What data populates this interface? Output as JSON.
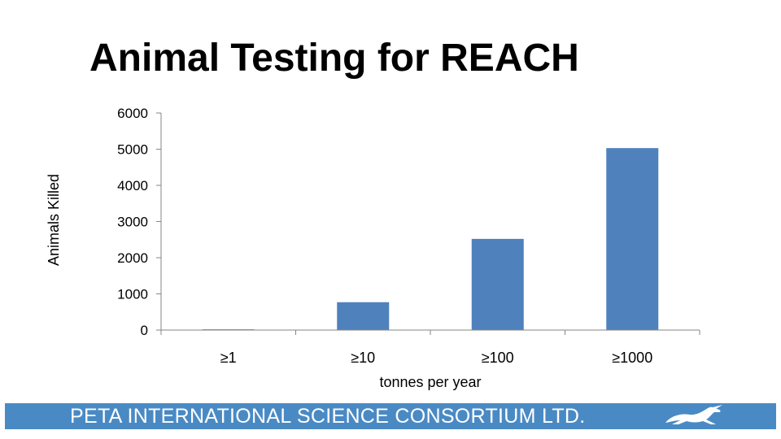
{
  "slide": {
    "title": "Animal Testing for REACH"
  },
  "footer": {
    "text": "PETA INTERNATIONAL SCIENCE CONSORTIUM LTD.",
    "logo_icon": "leaping-rabbit-icon",
    "bar_color": "#4a8ac4"
  },
  "chart_data": {
    "type": "bar",
    "categories": [
      "≥1",
      "≥10",
      "≥100",
      "≥1000"
    ],
    "values": [
      20,
      770,
      2520,
      5030
    ],
    "xlabel": "tonnes per year",
    "ylabel": "Animals Killed",
    "ylim": [
      0,
      6000
    ],
    "yticks": [
      0,
      1000,
      2000,
      3000,
      4000,
      5000,
      6000
    ],
    "grid": false,
    "legend": "none",
    "bar_color": "#4f81bd"
  }
}
